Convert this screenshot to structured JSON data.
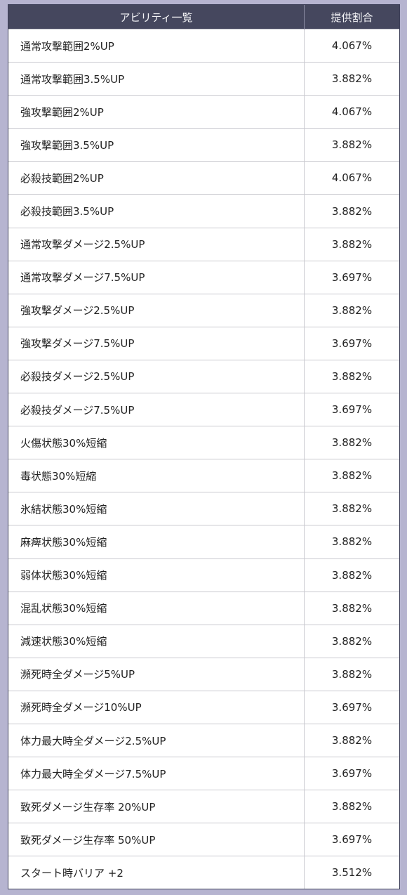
{
  "table": {
    "headers": [
      "アビリティ一覧",
      "提供割合"
    ],
    "rows": [
      [
        "通常攻撃範囲2%UP",
        "4.067%"
      ],
      [
        "通常攻撃範囲3.5%UP",
        "3.882%"
      ],
      [
        "強攻撃範囲2%UP",
        "4.067%"
      ],
      [
        "強攻撃範囲3.5%UP",
        "3.882%"
      ],
      [
        "必殺技範囲2%UP",
        "4.067%"
      ],
      [
        "必殺技範囲3.5%UP",
        "3.882%"
      ],
      [
        "通常攻撃ダメージ2.5%UP",
        "3.882%"
      ],
      [
        "通常攻撃ダメージ7.5%UP",
        "3.697%"
      ],
      [
        "強攻撃ダメージ2.5%UP",
        "3.882%"
      ],
      [
        "強攻撃ダメージ7.5%UP",
        "3.697%"
      ],
      [
        "必殺技ダメージ2.5%UP",
        "3.882%"
      ],
      [
        "必殺技ダメージ7.5%UP",
        "3.697%"
      ],
      [
        "火傷状態30%短縮",
        "3.882%"
      ],
      [
        "毒状態30%短縮",
        "3.882%"
      ],
      [
        "氷結状態30%短縮",
        "3.882%"
      ],
      [
        "麻痺状態30%短縮",
        "3.882%"
      ],
      [
        "弱体状態30%短縮",
        "3.882%"
      ],
      [
        "混乱状態30%短縮",
        "3.882%"
      ],
      [
        "減速状態30%短縮",
        "3.882%"
      ],
      [
        "瀕死時全ダメージ5%UP",
        "3.882%"
      ],
      [
        "瀕死時全ダメージ10%UP",
        "3.697%"
      ],
      [
        "体力最大時全ダメージ2.5%UP",
        "3.882%"
      ],
      [
        "体力最大時全ダメージ7.5%UP",
        "3.697%"
      ],
      [
        "致死ダメージ生存率 20%UP",
        "3.882%"
      ],
      [
        "致死ダメージ生存率 50%UP",
        "3.697%"
      ],
      [
        "スタート時バリア +2",
        "3.512%"
      ]
    ]
  }
}
